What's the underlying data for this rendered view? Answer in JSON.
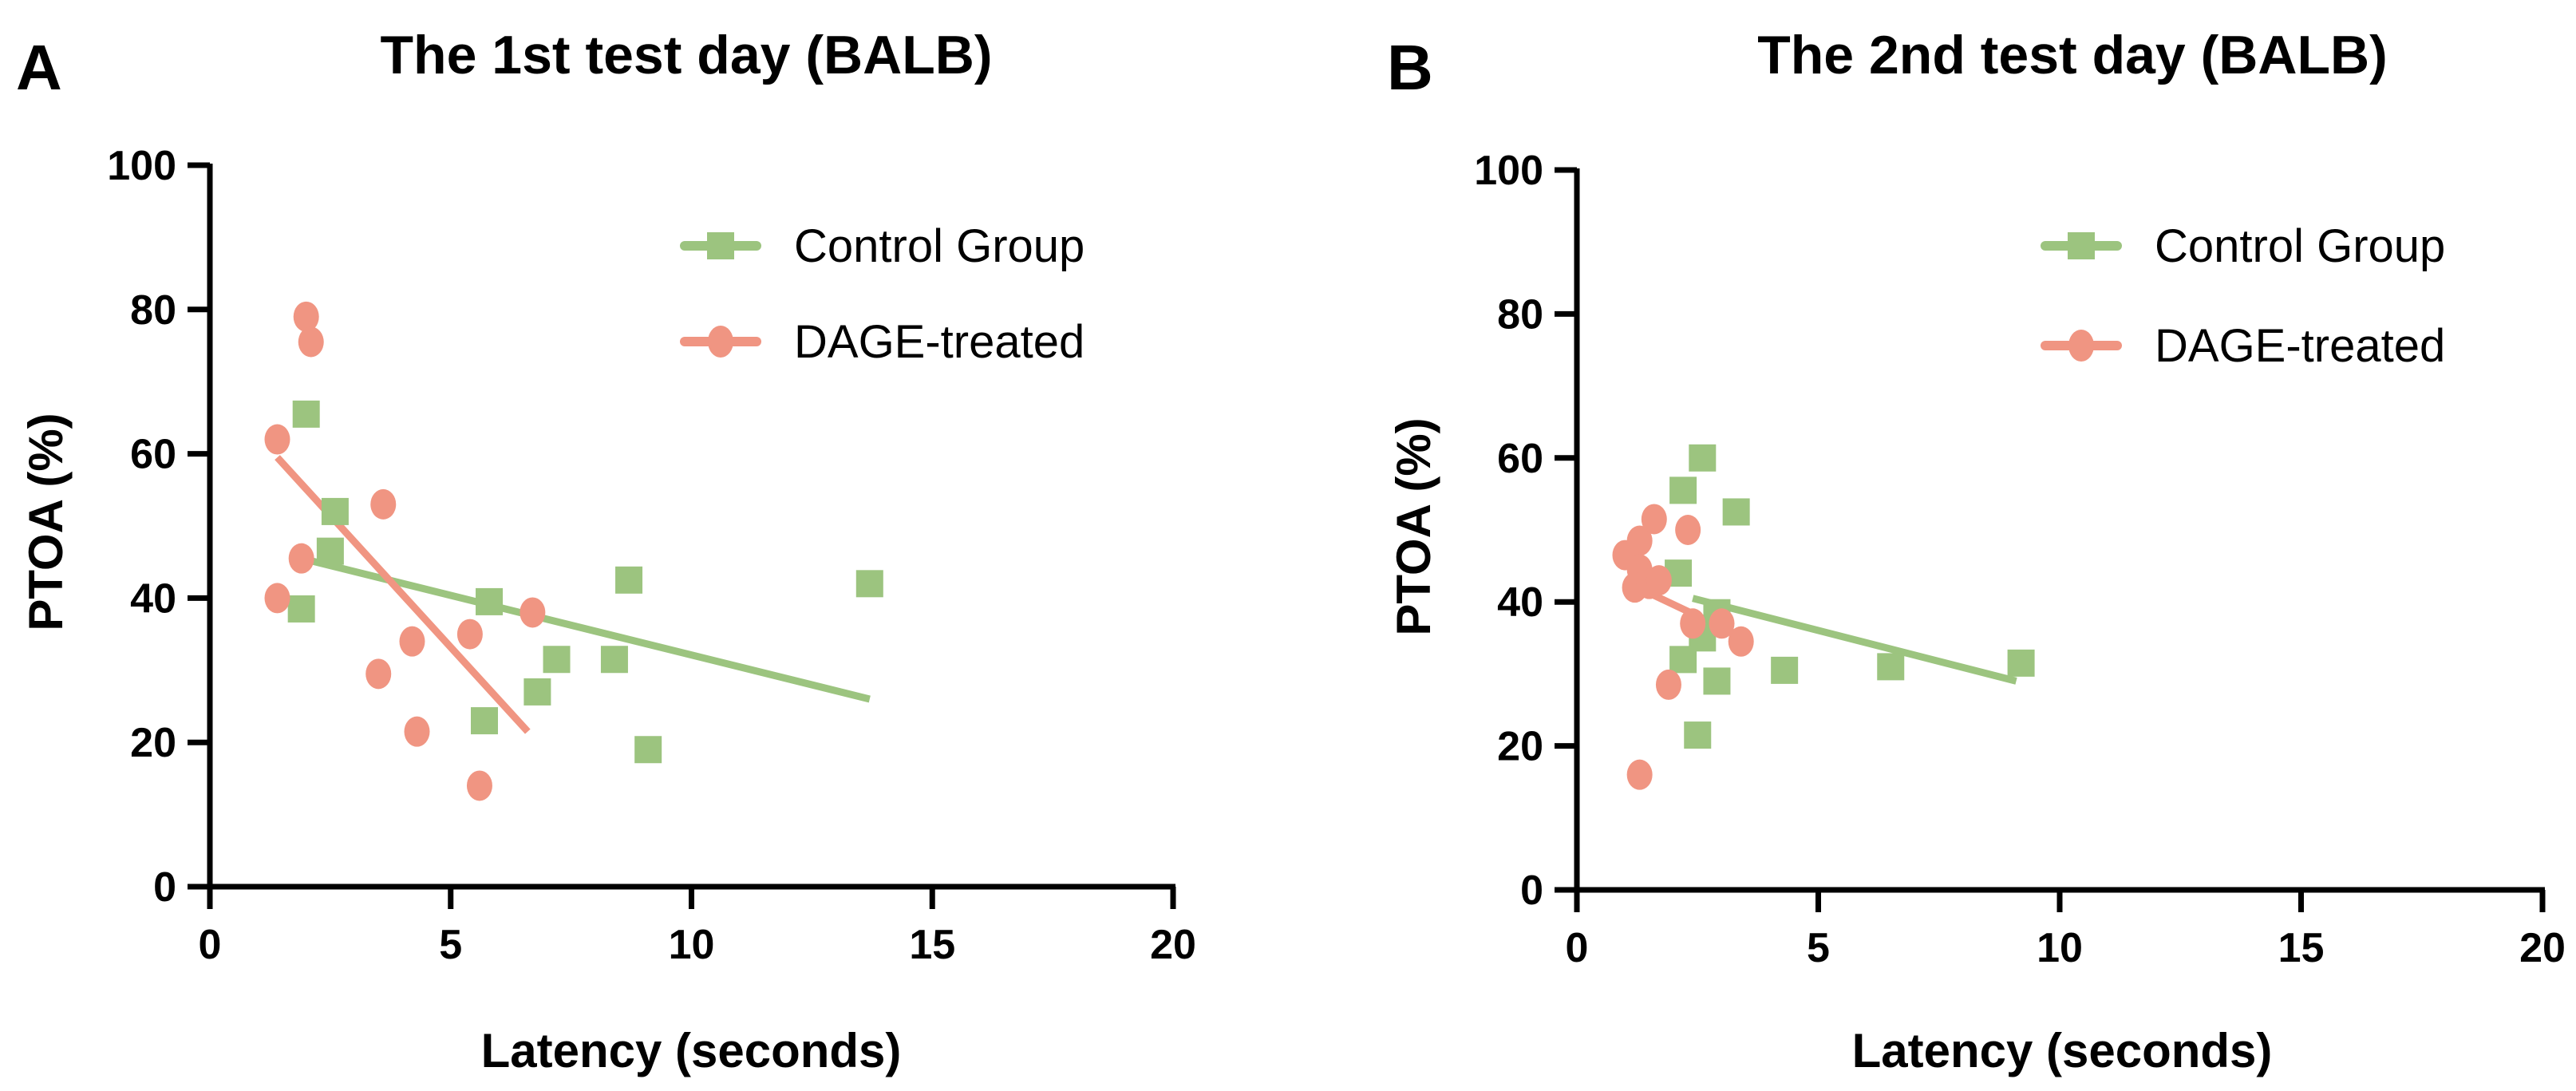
{
  "chart_data": [
    {
      "type": "scatter",
      "panel": "A",
      "title": "The 1st test day (BALB)",
      "xlabel": "Latency (seconds)",
      "ylabel": "PTOA (%)",
      "xlim": [
        0,
        20
      ],
      "ylim": [
        0,
        100
      ],
      "xticks": [
        0,
        5,
        10,
        15,
        20
      ],
      "yticks": [
        0,
        20,
        40,
        60,
        80,
        100
      ],
      "legend_position": "top-right",
      "series": [
        {
          "name": "Control Group",
          "color": "#9cc47f",
          "marker": "square",
          "points": [
            [
              2.0,
              65.5
            ],
            [
              2.6,
              52
            ],
            [
              2.5,
              46.5
            ],
            [
              1.9,
              38.5
            ],
            [
              5.8,
              39.5
            ],
            [
              5.7,
              23
            ],
            [
              6.8,
              27
            ],
            [
              7.2,
              31.5
            ],
            [
              8.4,
              31.5
            ],
            [
              8.7,
              42.5
            ],
            [
              9.1,
              19
            ],
            [
              13.7,
              42
            ]
          ],
          "trend": [
            [
              1.9,
              45.5
            ],
            [
              13.7,
              26
            ]
          ]
        },
        {
          "name": "DAGE-treated",
          "color": "#f09582",
          "marker": "circle",
          "points": [
            [
              1.4,
              62
            ],
            [
              1.4,
              40
            ],
            [
              1.9,
              45.5
            ],
            [
              2.0,
              79
            ],
            [
              2.1,
              75.5
            ],
            [
              3.5,
              29.5
            ],
            [
              3.6,
              53
            ],
            [
              4.2,
              34
            ],
            [
              4.3,
              21.5
            ],
            [
              5.4,
              35
            ],
            [
              5.6,
              14
            ],
            [
              6.7,
              38
            ]
          ],
          "trend": [
            [
              1.4,
              59.5
            ],
            [
              6.6,
              21.5
            ]
          ]
        }
      ]
    },
    {
      "type": "scatter",
      "panel": "B",
      "title": "The 2nd test day (BALB)",
      "xlabel": "Latency (seconds)",
      "ylabel": "PTOA (%)",
      "xlim": [
        0,
        20
      ],
      "ylim": [
        0,
        100
      ],
      "xticks": [
        0,
        5,
        10,
        15,
        20
      ],
      "yticks": [
        0,
        20,
        40,
        60,
        80,
        100
      ],
      "legend_position": "top-right",
      "series": [
        {
          "name": "Control Group",
          "color": "#9cc47f",
          "marker": "square",
          "points": [
            [
              2.6,
              60
            ],
            [
              2.2,
              55.5
            ],
            [
              3.3,
              52.5
            ],
            [
              2.1,
              44
            ],
            [
              2.9,
              38.5
            ],
            [
              2.6,
              35
            ],
            [
              2.2,
              32
            ],
            [
              2.9,
              29
            ],
            [
              2.5,
              21.5
            ],
            [
              4.3,
              30.5
            ],
            [
              6.5,
              31
            ],
            [
              9.2,
              31.5
            ]
          ],
          "trend": [
            [
              2.4,
              40.5
            ],
            [
              9.1,
              29
            ]
          ]
        },
        {
          "name": "DAGE-treated",
          "color": "#f09582",
          "marker": "circle",
          "points": [
            [
              1.0,
              46.5
            ],
            [
              1.3,
              48.5
            ],
            [
              1.6,
              51.5
            ],
            [
              1.3,
              44.5
            ],
            [
              1.2,
              42
            ],
            [
              1.5,
              42.5
            ],
            [
              1.7,
              43
            ],
            [
              2.3,
              50
            ],
            [
              2.4,
              37
            ],
            [
              3.0,
              37
            ],
            [
              3.4,
              34.5
            ],
            [
              1.9,
              28.5
            ],
            [
              1.3,
              16
            ]
          ],
          "trend": [
            [
              1.1,
              42.5
            ],
            [
              3.3,
              35.5
            ]
          ]
        }
      ]
    }
  ]
}
